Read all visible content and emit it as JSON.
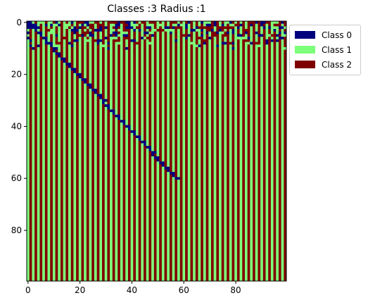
{
  "chart_data": {
    "type": "heatmap",
    "title": "Classes :3 Radius :1",
    "xlabel": "",
    "ylabel": "",
    "grid": false,
    "legend_placement": "outside top-right",
    "rows": 100,
    "cols": 100,
    "xlim": [
      -0.5,
      99.5
    ],
    "ylim": [
      99.5,
      -0.5
    ],
    "x_ticks": [
      0,
      20,
      40,
      60,
      80
    ],
    "y_ticks": [
      0,
      20,
      40,
      60,
      80
    ],
    "classes": [
      {
        "value": 0,
        "label": "Class 0",
        "color": "#00007f"
      },
      {
        "value": 1,
        "label": "Class 1",
        "color": "#7dff7a"
      },
      {
        "value": 2,
        "label": "Class 2",
        "color": "#7f0000"
      }
    ],
    "column_pattern_even_col_class": 1,
    "column_pattern_odd_col_class": 2,
    "diagonal_trace": {
      "class": 0,
      "start": [
        0,
        0
      ],
      "end": [
        60,
        57
      ]
    },
    "top_noise_region": {
      "rows": [
        0,
        10
      ],
      "note_classes": [
        0,
        1,
        2
      ]
    }
  },
  "title": "Classes :3 Radius :1",
  "legend": [
    {
      "label": "Class 0",
      "color": "#00007f"
    },
    {
      "label": "Class 1",
      "color": "#7dff7a"
    },
    {
      "label": "Class 2",
      "color": "#7f0000"
    }
  ]
}
